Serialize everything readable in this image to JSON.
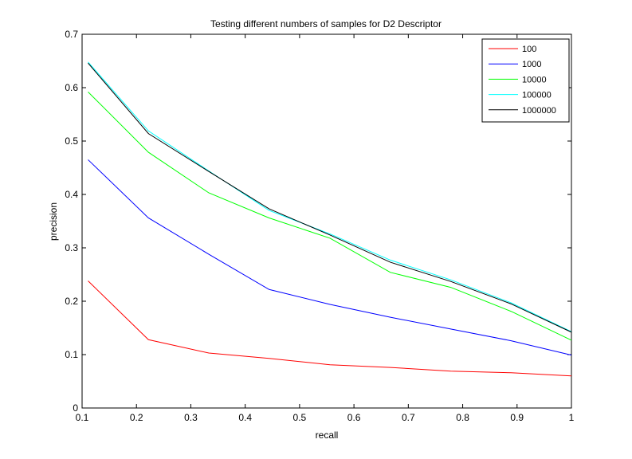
{
  "chart_data": {
    "type": "line",
    "title": "Testing different numbers of samples for D2 Descriptor",
    "xlabel": "recall",
    "ylabel": "precision",
    "xlim": [
      0.1,
      1
    ],
    "ylim": [
      0,
      0.7
    ],
    "xticks": [
      "0.1",
      "0.2",
      "0.3",
      "0.4",
      "0.5",
      "0.6",
      "0.7",
      "0.8",
      "0.9",
      "1"
    ],
    "yticks": [
      "0",
      "0.1",
      "0.2",
      "0.3",
      "0.4",
      "0.5",
      "0.6",
      "0.7"
    ],
    "grid": false,
    "legend_position": "top-right",
    "x": [
      0.111,
      0.222,
      0.333,
      0.444,
      0.556,
      0.667,
      0.778,
      0.889,
      1.0
    ],
    "series": [
      {
        "name": "100",
        "color": "#ff0000",
        "values": [
          0.238,
          0.128,
          0.103,
          0.093,
          0.081,
          0.076,
          0.069,
          0.066,
          0.06
        ]
      },
      {
        "name": "1000",
        "color": "#0000ff",
        "values": [
          0.465,
          0.356,
          0.288,
          0.222,
          0.194,
          0.17,
          0.148,
          0.126,
          0.099
        ]
      },
      {
        "name": "10000",
        "color": "#00ff00",
        "values": [
          0.592,
          0.479,
          0.403,
          0.356,
          0.318,
          0.254,
          0.226,
          0.181,
          0.127
        ]
      },
      {
        "name": "100000",
        "color": "#00ffff",
        "values": [
          0.648,
          0.519,
          0.444,
          0.37,
          0.326,
          0.277,
          0.24,
          0.197,
          0.143
        ]
      },
      {
        "name": "1000000",
        "color": "#000000",
        "values": [
          0.646,
          0.514,
          0.443,
          0.373,
          0.324,
          0.273,
          0.237,
          0.195,
          0.142
        ]
      }
    ]
  }
}
